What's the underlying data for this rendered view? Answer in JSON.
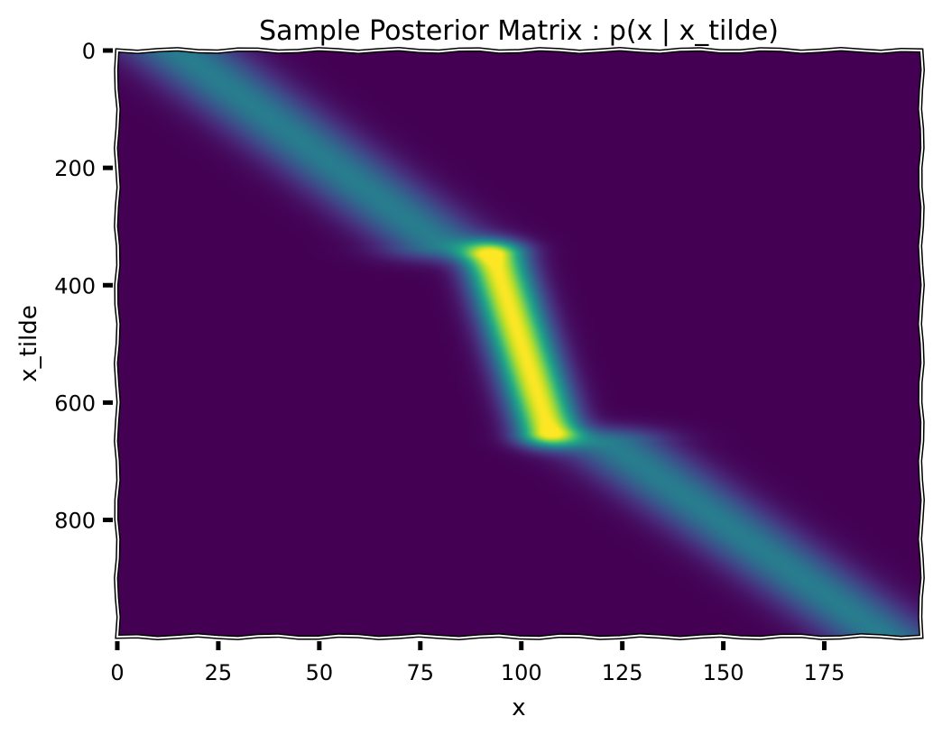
{
  "chart_data": {
    "type": "heatmap",
    "title": "Sample Posterior Matrix : p(x | x_tilde)",
    "xlabel": "x",
    "ylabel": "x_tilde",
    "xlim": [
      0,
      199
    ],
    "ylim": [
      999,
      0
    ],
    "x_ticks": [
      0,
      25,
      50,
      75,
      100,
      125,
      150,
      175
    ],
    "y_ticks": [
      0,
      200,
      400,
      600,
      800
    ],
    "colormap": "viridis",
    "grid": false,
    "components": [
      {
        "x0": 15,
        "y0": 0,
        "x1": 80,
        "y1": 330,
        "sigma": 10,
        "weight": 0.42
      },
      {
        "x0": 93,
        "y0": 350,
        "x1": 107,
        "y1": 650,
        "sigma": 5.5,
        "weight": 1.0
      },
      {
        "x0": 122,
        "y0": 670,
        "x1": 190,
        "y1": 999,
        "sigma": 10,
        "weight": 0.42
      }
    ]
  }
}
